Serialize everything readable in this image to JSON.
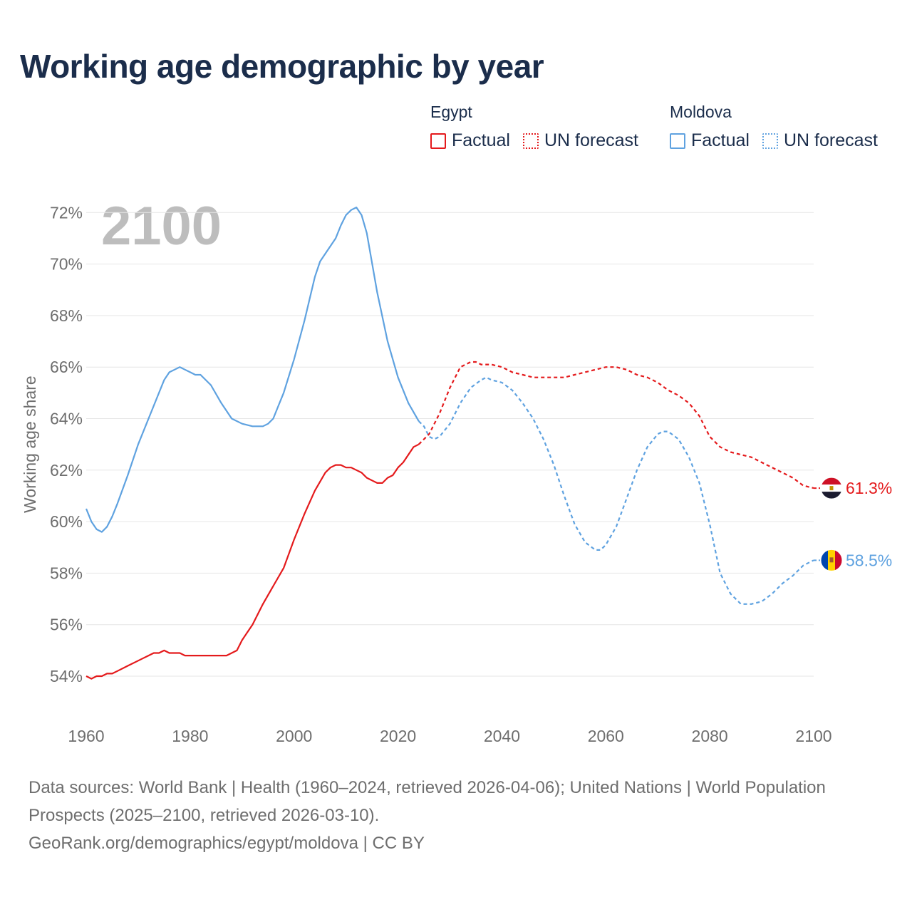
{
  "title": "Working age demographic by year",
  "year_overlay": "2100",
  "legend": {
    "groups": [
      {
        "country": "Egypt",
        "factual_label": "Factual",
        "forecast_label": "UN forecast",
        "color": "#e41a1c"
      },
      {
        "country": "Moldova",
        "factual_label": "Factual",
        "forecast_label": "UN forecast",
        "color": "#5fa2e0"
      }
    ]
  },
  "footer": {
    "sources": "Data sources: World Bank | Health (1960–2024, retrieved 2026-04-06); United Nations | World Population Prospects (2025–2100, retrieved 2026-03-10).",
    "credit": "GeoRank.org/demographics/egypt/moldova | CC BY"
  },
  "chart_data": {
    "type": "line",
    "title": "Working age demographic by year",
    "xlabel": "",
    "ylabel": "Working age share",
    "xlim": [
      1960,
      2100
    ],
    "ylim": [
      53,
      72.5
    ],
    "x_ticks": [
      1960,
      1980,
      2000,
      2020,
      2040,
      2060,
      2080,
      2100
    ],
    "y_ticks": [
      54,
      56,
      58,
      60,
      62,
      64,
      66,
      68,
      70,
      72
    ],
    "y_tick_labels": [
      "54%",
      "56%",
      "58%",
      "60%",
      "62%",
      "64%",
      "66%",
      "68%",
      "70%",
      "72%"
    ],
    "x_tick_labels": [
      "1960",
      "1980",
      "2000",
      "2020",
      "2040",
      "2060",
      "2080",
      "2100"
    ],
    "grid": true,
    "series": [
      {
        "name": "Egypt",
        "color": "#e41a1c",
        "end_label": "61.3%",
        "factual": {
          "x": [
            1960,
            1961,
            1962,
            1963,
            1964,
            1965,
            1966,
            1968,
            1970,
            1971,
            1972,
            1973,
            1974,
            1975,
            1976,
            1978,
            1979,
            1980,
            1982,
            1984,
            1986,
            1987,
            1988,
            1989,
            1990,
            1991,
            1992,
            1993,
            1994,
            1996,
            1998,
            2000,
            2002,
            2004,
            2006,
            2007,
            2008,
            2009,
            2010,
            2011,
            2012,
            2013,
            2014,
            2015,
            2016,
            2017,
            2018,
            2019,
            2020,
            2021,
            2022,
            2023,
            2024
          ],
          "y": [
            54.0,
            53.9,
            54.0,
            54.0,
            54.1,
            54.1,
            54.2,
            54.4,
            54.6,
            54.7,
            54.8,
            54.9,
            54.9,
            55.0,
            54.9,
            54.9,
            54.8,
            54.8,
            54.8,
            54.8,
            54.8,
            54.8,
            54.9,
            55.0,
            55.4,
            55.7,
            56.0,
            56.4,
            56.8,
            57.5,
            58.2,
            59.3,
            60.3,
            61.2,
            61.9,
            62.1,
            62.2,
            62.2,
            62.1,
            62.1,
            62.0,
            61.9,
            61.7,
            61.6,
            61.5,
            61.5,
            61.7,
            61.8,
            62.1,
            62.3,
            62.6,
            62.9,
            63.0
          ]
        },
        "forecast": {
          "x": [
            2024,
            2026,
            2028,
            2030,
            2032,
            2034,
            2035,
            2036,
            2038,
            2040,
            2042,
            2044,
            2046,
            2048,
            2050,
            2052,
            2054,
            2056,
            2058,
            2060,
            2062,
            2064,
            2066,
            2068,
            2070,
            2072,
            2074,
            2076,
            2078,
            2080,
            2082,
            2084,
            2086,
            2088,
            2090,
            2092,
            2094,
            2096,
            2098,
            2100
          ],
          "y": [
            63.0,
            63.4,
            64.2,
            65.2,
            66.0,
            66.2,
            66.2,
            66.1,
            66.1,
            66.0,
            65.8,
            65.7,
            65.6,
            65.6,
            65.6,
            65.6,
            65.7,
            65.8,
            65.9,
            66.0,
            66.0,
            65.9,
            65.7,
            65.6,
            65.4,
            65.1,
            64.9,
            64.6,
            64.1,
            63.3,
            62.9,
            62.7,
            62.6,
            62.5,
            62.3,
            62.1,
            61.9,
            61.7,
            61.4,
            61.3
          ]
        }
      },
      {
        "name": "Moldova",
        "color": "#5fa2e0",
        "end_label": "58.5%",
        "factual": {
          "x": [
            1960,
            1961,
            1962,
            1963,
            1964,
            1965,
            1966,
            1968,
            1970,
            1972,
            1974,
            1975,
            1976,
            1977,
            1978,
            1979,
            1980,
            1981,
            1982,
            1984,
            1986,
            1988,
            1990,
            1992,
            1994,
            1995,
            1996,
            1997,
            1998,
            2000,
            2002,
            2004,
            2005,
            2006,
            2008,
            2009,
            2010,
            2011,
            2012,
            2013,
            2014,
            2016,
            2018,
            2020,
            2022,
            2024
          ],
          "y": [
            60.5,
            60.0,
            59.7,
            59.6,
            59.8,
            60.2,
            60.7,
            61.8,
            63.0,
            64.0,
            65.0,
            65.5,
            65.8,
            65.9,
            66.0,
            65.9,
            65.8,
            65.7,
            65.7,
            65.3,
            64.6,
            64.0,
            63.8,
            63.7,
            63.7,
            63.8,
            64.0,
            64.5,
            65.0,
            66.3,
            67.8,
            69.5,
            70.1,
            70.4,
            71.0,
            71.5,
            71.9,
            72.1,
            72.2,
            71.9,
            71.2,
            68.9,
            67.0,
            65.6,
            64.6,
            63.9
          ]
        },
        "forecast": {
          "x": [
            2024,
            2025,
            2026,
            2027,
            2028,
            2030,
            2032,
            2034,
            2036,
            2037,
            2038,
            2040,
            2042,
            2044,
            2046,
            2048,
            2050,
            2052,
            2054,
            2056,
            2058,
            2059,
            2060,
            2062,
            2064,
            2066,
            2068,
            2070,
            2071,
            2072,
            2074,
            2076,
            2078,
            2080,
            2082,
            2084,
            2086,
            2088,
            2090,
            2092,
            2094,
            2096,
            2098,
            2100
          ],
          "y": [
            63.9,
            63.7,
            63.3,
            63.2,
            63.3,
            63.8,
            64.6,
            65.2,
            65.5,
            65.6,
            65.5,
            65.4,
            65.1,
            64.6,
            64.0,
            63.2,
            62.2,
            61.0,
            59.9,
            59.2,
            58.9,
            58.9,
            59.1,
            59.8,
            60.9,
            62.0,
            62.9,
            63.4,
            63.5,
            63.5,
            63.2,
            62.5,
            61.5,
            59.9,
            58.0,
            57.2,
            56.8,
            56.8,
            56.9,
            57.2,
            57.6,
            57.9,
            58.3,
            58.5
          ]
        }
      }
    ]
  }
}
